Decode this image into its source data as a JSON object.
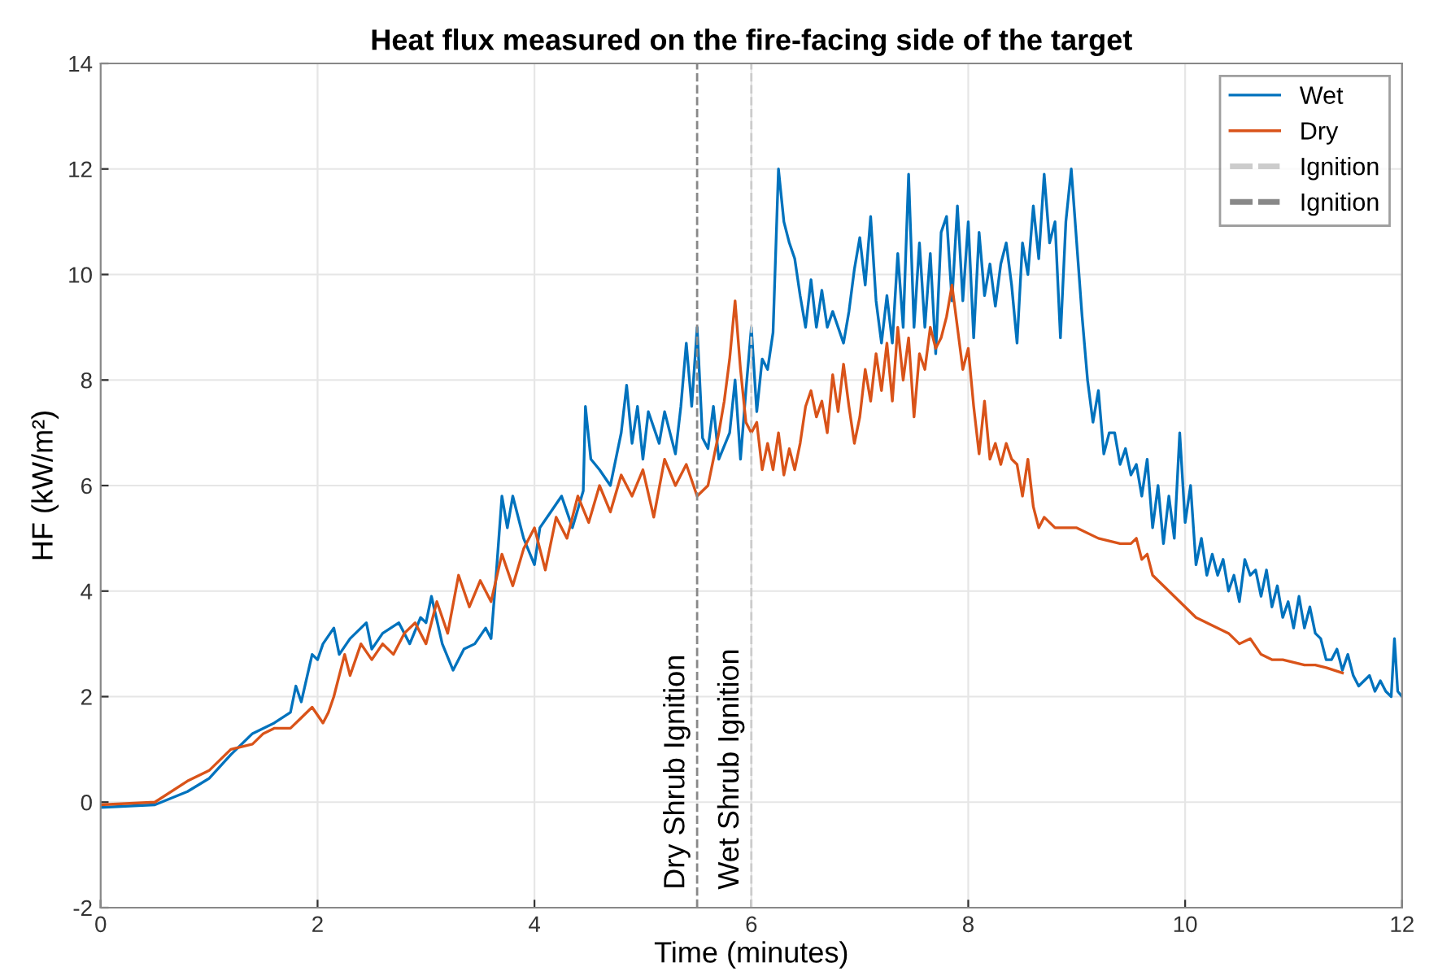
{
  "chart_data": {
    "type": "line",
    "title": "Heat flux measured on the fire-facing side of the target",
    "xlabel": "Time (minutes)",
    "ylabel": "HF (kW/m²)",
    "xlim": [
      0,
      12
    ],
    "xticks": [
      0,
      2,
      4,
      6,
      8,
      10,
      12
    ],
    "ylim": [
      -2,
      14
    ],
    "yticks": [
      -2,
      0,
      2,
      4,
      6,
      8,
      10,
      12,
      14
    ],
    "grid": true,
    "legend": "top right",
    "line_style": "solid",
    "marker": "none",
    "series": [
      {
        "name": "Wet",
        "color": "#0072bd",
        "x": [
          0,
          0.5,
          0.8,
          1.0,
          1.2,
          1.4,
          1.5,
          1.6,
          1.75,
          1.8,
          1.85,
          1.95,
          2.0,
          2.05,
          2.15,
          2.2,
          2.3,
          2.45,
          2.5,
          2.6,
          2.75,
          2.85,
          2.95,
          3.0,
          3.05,
          3.15,
          3.25,
          3.35,
          3.45,
          3.55,
          3.6,
          3.65,
          3.7,
          3.75,
          3.8,
          3.9,
          4.0,
          4.05,
          4.15,
          4.25,
          4.35,
          4.45,
          4.47,
          4.52,
          4.6,
          4.7,
          4.8,
          4.85,
          4.9,
          4.95,
          5.0,
          5.05,
          5.15,
          5.2,
          5.3,
          5.35,
          5.4,
          5.45,
          5.5,
          5.55,
          5.6,
          5.65,
          5.7,
          5.8,
          5.85,
          5.9,
          5.95,
          6.0,
          6.05,
          6.1,
          6.15,
          6.2,
          6.25,
          6.3,
          6.35,
          6.4,
          6.45,
          6.5,
          6.55,
          6.6,
          6.65,
          6.7,
          6.75,
          6.8,
          6.85,
          6.9,
          6.95,
          7.0,
          7.05,
          7.1,
          7.15,
          7.2,
          7.25,
          7.3,
          7.35,
          7.4,
          7.45,
          7.5,
          7.55,
          7.6,
          7.65,
          7.7,
          7.75,
          7.8,
          7.85,
          7.9,
          7.95,
          8.0,
          8.05,
          8.1,
          8.15,
          8.2,
          8.25,
          8.3,
          8.35,
          8.4,
          8.45,
          8.5,
          8.55,
          8.6,
          8.65,
          8.7,
          8.75,
          8.8,
          8.85,
          8.9,
          8.95,
          9.0,
          9.05,
          9.1,
          9.15,
          9.2,
          9.25,
          9.3,
          9.35,
          9.4,
          9.45,
          9.5,
          9.55,
          9.6,
          9.65,
          9.7,
          9.75,
          9.8,
          9.85,
          9.9,
          9.95,
          10.0,
          10.05,
          10.1,
          10.15,
          10.2,
          10.25,
          10.3,
          10.35,
          10.4,
          10.45,
          10.5,
          10.55,
          10.6,
          10.65,
          10.7,
          10.75,
          10.8,
          10.85,
          10.9,
          10.95,
          11.0,
          11.05,
          11.1,
          11.15,
          11.2,
          11.25,
          11.3,
          11.35,
          11.4,
          11.45,
          11.5,
          11.55,
          11.6,
          11.7,
          11.75,
          11.8,
          11.85,
          11.9,
          11.93,
          11.96,
          12.0
        ],
        "values": [
          -0.1,
          -0.05,
          0.2,
          0.45,
          0.9,
          1.3,
          1.4,
          1.5,
          1.7,
          2.2,
          1.9,
          2.8,
          2.7,
          3.0,
          3.3,
          2.8,
          3.1,
          3.4,
          2.9,
          3.2,
          3.4,
          3.0,
          3.5,
          3.4,
          3.9,
          3.0,
          2.5,
          2.9,
          3.0,
          3.3,
          3.1,
          4.4,
          5.8,
          5.2,
          5.8,
          5.0,
          4.5,
          5.2,
          5.5,
          5.8,
          5.2,
          5.9,
          7.5,
          6.5,
          6.3,
          6.0,
          7.0,
          7.9,
          6.8,
          7.5,
          6.5,
          7.4,
          6.8,
          7.4,
          6.6,
          7.5,
          8.7,
          7.5,
          9.0,
          6.9,
          6.7,
          7.5,
          6.5,
          7.0,
          8.0,
          6.5,
          7.8,
          9.0,
          7.4,
          8.4,
          8.2,
          8.9,
          12.0,
          11.0,
          10.6,
          10.3,
          9.6,
          9.0,
          9.9,
          9.0,
          9.7,
          9.0,
          9.3,
          9.0,
          8.7,
          9.3,
          10.1,
          10.7,
          9.8,
          11.1,
          9.5,
          8.7,
          9.6,
          8.7,
          10.4,
          9.0,
          11.9,
          9.0,
          10.6,
          9.0,
          10.4,
          8.5,
          10.8,
          11.1,
          9.5,
          11.3,
          9.5,
          11.0,
          8.8,
          10.8,
          9.6,
          10.2,
          9.4,
          10.2,
          10.6,
          9.8,
          8.7,
          10.6,
          10.0,
          11.3,
          10.3,
          11.9,
          10.6,
          11.0,
          8.8,
          11.0,
          12.0,
          10.6,
          9.2,
          8.0,
          7.2,
          7.8,
          6.6,
          7.0,
          7.0,
          6.4,
          6.7,
          6.2,
          6.4,
          5.8,
          6.5,
          5.2,
          6.0,
          4.9,
          5.8,
          5.0,
          7.0,
          5.3,
          6.0,
          4.5,
          5.0,
          4.3,
          4.7,
          4.3,
          4.6,
          4.0,
          4.3,
          3.8,
          4.6,
          4.3,
          4.4,
          3.9,
          4.4,
          3.7,
          4.1,
          3.5,
          3.8,
          3.3,
          3.9,
          3.3,
          3.7,
          3.2,
          3.1,
          2.7,
          2.7,
          2.9,
          2.5,
          2.8,
          2.4,
          2.2,
          2.4,
          2.1,
          2.3,
          2.1,
          2.0,
          3.1,
          2.1,
          2.0
        ]
      },
      {
        "name": "Dry",
        "color": "#d95319",
        "x": [
          0,
          0.5,
          0.8,
          1.0,
          1.2,
          1.4,
          1.5,
          1.6,
          1.75,
          1.85,
          1.95,
          2.05,
          2.1,
          2.15,
          2.25,
          2.3,
          2.4,
          2.5,
          2.6,
          2.7,
          2.8,
          2.9,
          3.0,
          3.1,
          3.2,
          3.3,
          3.4,
          3.5,
          3.6,
          3.7,
          3.8,
          3.9,
          4.0,
          4.1,
          4.2,
          4.3,
          4.4,
          4.5,
          4.6,
          4.7,
          4.8,
          4.9,
          5.0,
          5.1,
          5.2,
          5.3,
          5.4,
          5.5,
          5.6,
          5.65,
          5.7,
          5.75,
          5.8,
          5.85,
          5.9,
          5.95,
          6.0,
          6.05,
          6.1,
          6.15,
          6.2,
          6.25,
          6.3,
          6.35,
          6.4,
          6.45,
          6.5,
          6.55,
          6.6,
          6.65,
          6.7,
          6.75,
          6.8,
          6.85,
          6.9,
          6.95,
          7.0,
          7.05,
          7.1,
          7.15,
          7.2,
          7.25,
          7.3,
          7.35,
          7.4,
          7.45,
          7.5,
          7.55,
          7.6,
          7.65,
          7.7,
          7.75,
          7.8,
          7.85,
          7.9,
          7.95,
          8.0,
          8.05,
          8.1,
          8.15,
          8.2,
          8.25,
          8.3,
          8.35,
          8.4,
          8.45,
          8.5,
          8.55,
          8.6,
          8.65,
          8.7,
          8.8,
          9.0,
          9.2,
          9.4,
          9.5,
          9.55,
          9.6,
          9.65,
          9.7,
          9.8,
          9.9,
          10.0,
          10.1,
          10.2,
          10.3,
          10.4,
          10.5,
          10.6,
          10.7,
          10.8,
          10.9,
          11.0,
          11.1,
          11.2,
          11.3,
          11.45
        ],
        "values": [
          -0.05,
          0.0,
          0.4,
          0.6,
          1.0,
          1.1,
          1.3,
          1.4,
          1.4,
          1.6,
          1.8,
          1.5,
          1.7,
          2.0,
          2.8,
          2.4,
          3.0,
          2.7,
          3.0,
          2.8,
          3.2,
          3.4,
          3.0,
          3.8,
          3.2,
          4.3,
          3.7,
          4.2,
          3.8,
          4.7,
          4.1,
          4.8,
          5.2,
          4.4,
          5.4,
          5.0,
          5.8,
          5.3,
          6.0,
          5.5,
          6.2,
          5.8,
          6.3,
          5.4,
          6.5,
          6.0,
          6.4,
          5.8,
          6.0,
          6.5,
          7.0,
          7.6,
          8.4,
          9.5,
          8.2,
          7.2,
          7.0,
          7.2,
          6.3,
          6.8,
          6.3,
          7.0,
          6.2,
          6.7,
          6.3,
          6.8,
          7.5,
          7.8,
          7.3,
          7.6,
          7.0,
          8.1,
          7.4,
          8.3,
          7.5,
          6.8,
          7.3,
          8.2,
          7.6,
          8.5,
          7.8,
          8.7,
          7.6,
          9.0,
          8.0,
          8.8,
          7.3,
          8.5,
          8.2,
          9.0,
          8.6,
          8.8,
          9.2,
          9.8,
          9.0,
          8.2,
          8.6,
          7.5,
          6.6,
          7.6,
          6.5,
          6.8,
          6.4,
          6.8,
          6.5,
          6.4,
          5.8,
          6.5,
          5.6,
          5.2,
          5.4,
          5.2,
          5.2,
          5.0,
          4.9,
          4.9,
          5.0,
          4.6,
          4.7,
          4.3,
          4.1,
          3.9,
          3.7,
          3.5,
          3.4,
          3.3,
          3.2,
          3.0,
          3.1,
          2.8,
          2.7,
          2.7,
          2.65,
          2.6,
          2.6,
          2.55,
          2.45
        ]
      },
      {
        "name": "Ignition",
        "color": "#cccccc",
        "line_style": "dashed",
        "x": [
          6.0,
          6.0
        ],
        "values": [
          -2,
          14
        ]
      },
      {
        "name": "Ignition",
        "color": "#888888",
        "line_style": "dashed",
        "x": [
          5.5,
          5.5
        ],
        "values": [
          -2,
          14
        ]
      }
    ],
    "annotations": [
      "Dry Shrub Ignition",
      "Wet Shrub Ignition"
    ]
  }
}
